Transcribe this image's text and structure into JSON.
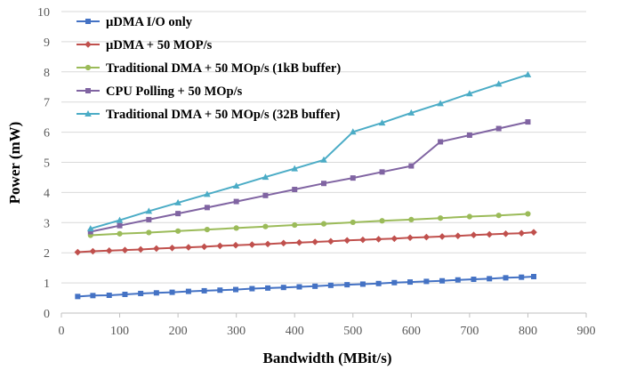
{
  "chart_data": {
    "type": "line",
    "xlabel": "Bandwidth (MBit/s)",
    "ylabel": "Power (mW)",
    "xlim": [
      0,
      900
    ],
    "ylim": [
      0,
      10
    ],
    "xticks": [
      0,
      100,
      200,
      300,
      400,
      500,
      600,
      700,
      800,
      900
    ],
    "yticks": [
      0,
      1,
      2,
      3,
      4,
      5,
      6,
      7,
      8,
      9,
      10
    ],
    "grid": "horizontal",
    "legend_position": "top-left",
    "series": [
      {
        "name": "µDMA I/O only",
        "color": "#4472C4",
        "marker": "square",
        "x": [
          28,
          54,
          82,
          109,
          136,
          163,
          190,
          218,
          245,
          272,
          299,
          327,
          354,
          381,
          408,
          435,
          462,
          490,
          517,
          544,
          571,
          598,
          626,
          653,
          680,
          707,
          734,
          762,
          789,
          810
        ],
        "y": [
          0.55,
          0.58,
          0.59,
          0.62,
          0.65,
          0.67,
          0.69,
          0.72,
          0.74,
          0.76,
          0.78,
          0.81,
          0.83,
          0.85,
          0.87,
          0.89,
          0.92,
          0.94,
          0.96,
          0.98,
          1.01,
          1.03,
          1.05,
          1.07,
          1.1,
          1.12,
          1.14,
          1.17,
          1.19,
          1.21
        ]
      },
      {
        "name": "µDMA + 50 MOP/s",
        "color": "#C0504D",
        "marker": "diamond",
        "x": [
          28,
          54,
          82,
          109,
          136,
          163,
          190,
          218,
          245,
          272,
          299,
          327,
          354,
          381,
          408,
          435,
          462,
          490,
          517,
          544,
          571,
          598,
          626,
          653,
          680,
          707,
          734,
          762,
          789,
          810
        ],
        "y": [
          2.02,
          2.05,
          2.07,
          2.09,
          2.11,
          2.14,
          2.16,
          2.18,
          2.2,
          2.23,
          2.25,
          2.27,
          2.29,
          2.32,
          2.34,
          2.36,
          2.38,
          2.41,
          2.43,
          2.45,
          2.47,
          2.5,
          2.52,
          2.54,
          2.56,
          2.59,
          2.61,
          2.63,
          2.65,
          2.68
        ]
      },
      {
        "name": "Traditional DMA + 50 MOp/s (1kB buffer)",
        "color": "#9BBB59",
        "marker": "circle",
        "x": [
          50,
          100,
          150,
          200,
          250,
          300,
          350,
          400,
          450,
          500,
          550,
          600,
          650,
          700,
          750,
          800
        ],
        "y": [
          2.58,
          2.63,
          2.67,
          2.72,
          2.77,
          2.82,
          2.87,
          2.92,
          2.96,
          3.01,
          3.06,
          3.1,
          3.15,
          3.2,
          3.24,
          3.29
        ]
      },
      {
        "name": "CPU Polling + 50 MOp/s",
        "color": "#8064A2",
        "marker": "square",
        "x": [
          50,
          100,
          150,
          200,
          250,
          300,
          350,
          400,
          450,
          500,
          550,
          600,
          650,
          700,
          750,
          800
        ],
        "y": [
          2.7,
          2.9,
          3.1,
          3.3,
          3.5,
          3.7,
          3.9,
          4.1,
          4.3,
          4.48,
          4.68,
          4.88,
          5.68,
          5.9,
          6.12,
          6.34
        ]
      },
      {
        "name": "Traditional DMA + 50 MOp/s (32B buffer)",
        "color": "#4BACC6",
        "marker": "triangle",
        "x": [
          50,
          100,
          150,
          200,
          250,
          300,
          350,
          400,
          450,
          500,
          550,
          600,
          650,
          700,
          750,
          800
        ],
        "y": [
          2.8,
          3.08,
          3.38,
          3.66,
          3.94,
          4.22,
          4.51,
          4.79,
          5.08,
          6.01,
          6.31,
          6.64,
          6.95,
          7.28,
          7.6,
          7.91
        ]
      }
    ]
  }
}
